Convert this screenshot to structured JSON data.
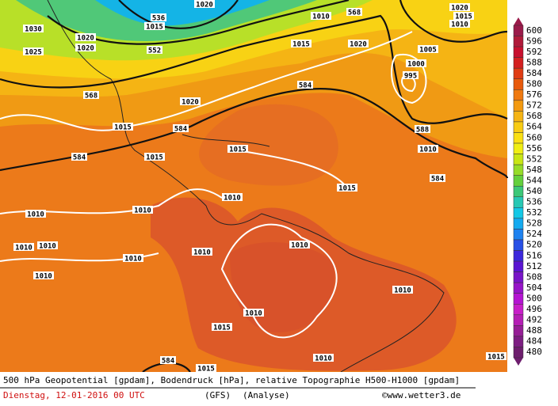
{
  "map": {
    "contour_labels": [
      "536",
      "1020",
      "1030",
      "1025",
      "1020",
      "1020",
      "1015",
      "552",
      "1010",
      "568",
      "1020",
      "1015",
      "1010",
      "1015",
      "1020",
      "1005",
      "1000",
      "995",
      "568",
      "584",
      "1020",
      "1015",
      "584",
      "588",
      "1010",
      "1015",
      "584",
      "1015",
      "584",
      "1015",
      "1010",
      "1010",
      "1010",
      "1010",
      "1010",
      "1010",
      "1010",
      "1010",
      "1010",
      "1010",
      "1010",
      "1015",
      "1010",
      "1015",
      "584",
      "1015"
    ]
  },
  "colorbar": {
    "labels": [
      600,
      596,
      592,
      588,
      584,
      580,
      576,
      572,
      568,
      564,
      560,
      556,
      552,
      548,
      544,
      540,
      536,
      532,
      528,
      524,
      520,
      516,
      512,
      508,
      504,
      500,
      496,
      492,
      488,
      484,
      480
    ],
    "colors": [
      "#9b1a4a",
      "#b01a3a",
      "#c8102e",
      "#d42020",
      "#e03c14",
      "#e85a0c",
      "#f07a10",
      "#f39a10",
      "#f5b414",
      "#f8cc14",
      "#fae014",
      "#f0ee14",
      "#c8e614",
      "#96dc28",
      "#64d03c",
      "#3cc878",
      "#28c8b4",
      "#14c8e6",
      "#14aaf0",
      "#1e82f0",
      "#2850e6",
      "#3c28dc",
      "#5a14d2",
      "#7814c8",
      "#9614c8",
      "#b414d2",
      "#c81ec8",
      "#b41eb4",
      "#961e96",
      "#7d1e82",
      "#6e1e6e"
    ]
  },
  "footer": {
    "description": "500 hPa Geopotential [gpdam], Bodendruck [hPa], relative Topographie H500-H1000 [gpdam]",
    "date": "Dienstag, 12-01-2016  00 UTC",
    "model": "(GFS)",
    "analysis": "(Analyse)",
    "source": "©www.wetter3.de"
  }
}
